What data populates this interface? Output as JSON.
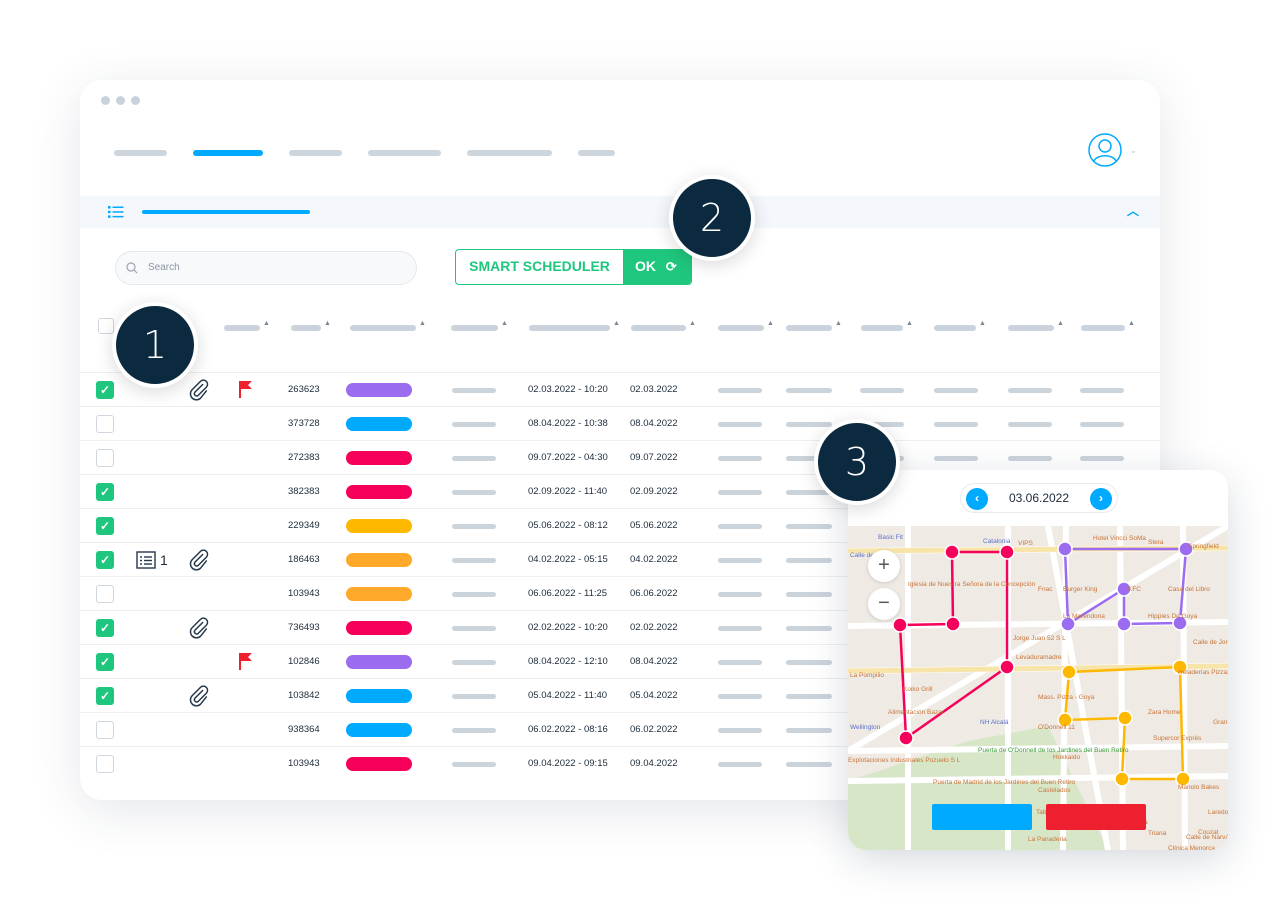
{
  "search": {
    "placeholder": "Search"
  },
  "toolbar": {
    "smart_scheduler_label": "SMART SCHEDULER",
    "ok_label": "OK"
  },
  "badges": [
    "1",
    "2",
    "3"
  ],
  "colors": {
    "purple": "#9b6cf0",
    "blue": "#00aaff",
    "red": "#f5005a",
    "yellow": "#ffb800",
    "orange": "#ffa92a",
    "green": "#1fc77e",
    "navy": "#0b2a3f",
    "cancel": "#ee1f2f"
  },
  "rows": [
    {
      "checked": true,
      "attach": true,
      "flag": true,
      "id": "263623",
      "color": "purple",
      "start": "02.03.2022 - 10:20",
      "end": "02.03.2022"
    },
    {
      "checked": false,
      "id": "373728",
      "color": "blue",
      "start": "08.04.2022 - 10:38",
      "end": "08.04.2022"
    },
    {
      "checked": false,
      "id": "272383",
      "color": "red",
      "start": "09.07.2022 - 04:30",
      "end": "09.07.2022"
    },
    {
      "checked": true,
      "id": "382383",
      "color": "red",
      "start": "02.09.2022 - 11:40",
      "end": "02.09.2022"
    },
    {
      "checked": true,
      "id": "229349",
      "color": "yellow",
      "start": "05.06.2022 - 08:12",
      "end": "05.06.2022"
    },
    {
      "checked": true,
      "list_count": "1",
      "attach": true,
      "id": "186463",
      "color": "orange",
      "start": "04.02.2022 - 05:15",
      "end": "04.02.2022"
    },
    {
      "checked": false,
      "id": "103943",
      "color": "orange",
      "start": "06.06.2022 - 11:25",
      "end": "06.06.2022"
    },
    {
      "checked": true,
      "attach": true,
      "id": "736493",
      "color": "red",
      "start": "02.02.2022 - 10:20",
      "end": "02.02.2022"
    },
    {
      "checked": true,
      "flag": true,
      "id": "102846",
      "color": "purple",
      "start": "08.04.2022 - 12:10",
      "end": "08.04.2022"
    },
    {
      "checked": true,
      "attach": true,
      "id": "103842",
      "color": "blue",
      "start": "05.04.2022 - 11:40",
      "end": "05.04.2022"
    },
    {
      "checked": false,
      "id": "938364",
      "color": "blue",
      "start": "06.02.2022 - 08:16",
      "end": "06.02.2022"
    },
    {
      "checked": false,
      "id": "103943",
      "color": "red",
      "start": "09.04.2022 - 09:15",
      "end": "09.04.2022"
    }
  ],
  "map": {
    "date": "03.06.2022",
    "routes": [
      {
        "color": "red"
      },
      {
        "color": "purple"
      },
      {
        "color": "yellow"
      }
    ],
    "labels": [
      "Basic Fit",
      "Catalonia",
      "Calle de Goya",
      "VIPS",
      "Hotel Vincci SoMa",
      "Stera",
      "Springfield",
      "Iglesia de Nuestra Señora de la Concepción",
      "Fnac",
      "Burger King",
      "KFC",
      "Casa del Libro",
      "La Merendona",
      "Hippies De Goya",
      "Jorge Juan 52 S L",
      "Calle de Jorge Juan",
      "Levaduramadre",
      "La Pompilio",
      "Koiko Grill",
      "Mass. Pizza - Goya",
      "Heladerías Pizzazzo",
      "Zara Home",
      "Alimentación Bazar",
      "NH Alcalá",
      "O'Donnell 11",
      "Wellington",
      "Supercor Exprés",
      "Puerta de O'Donnell de los Jardines del Buen Retiro",
      "Explotaciones Industriales Pozuelo S L",
      "Hokkaido",
      "Puerta de Madrid de los Jardines del Buen Retiro",
      "Castelados",
      "Manolo Bakes",
      "Taberna Arrabal Retiro",
      "La Montería",
      "Triana",
      "La Panaderia",
      "Clínica Menorca",
      "Calle de Narváez",
      "Granier",
      "Laredo",
      "Couzat"
    ]
  }
}
